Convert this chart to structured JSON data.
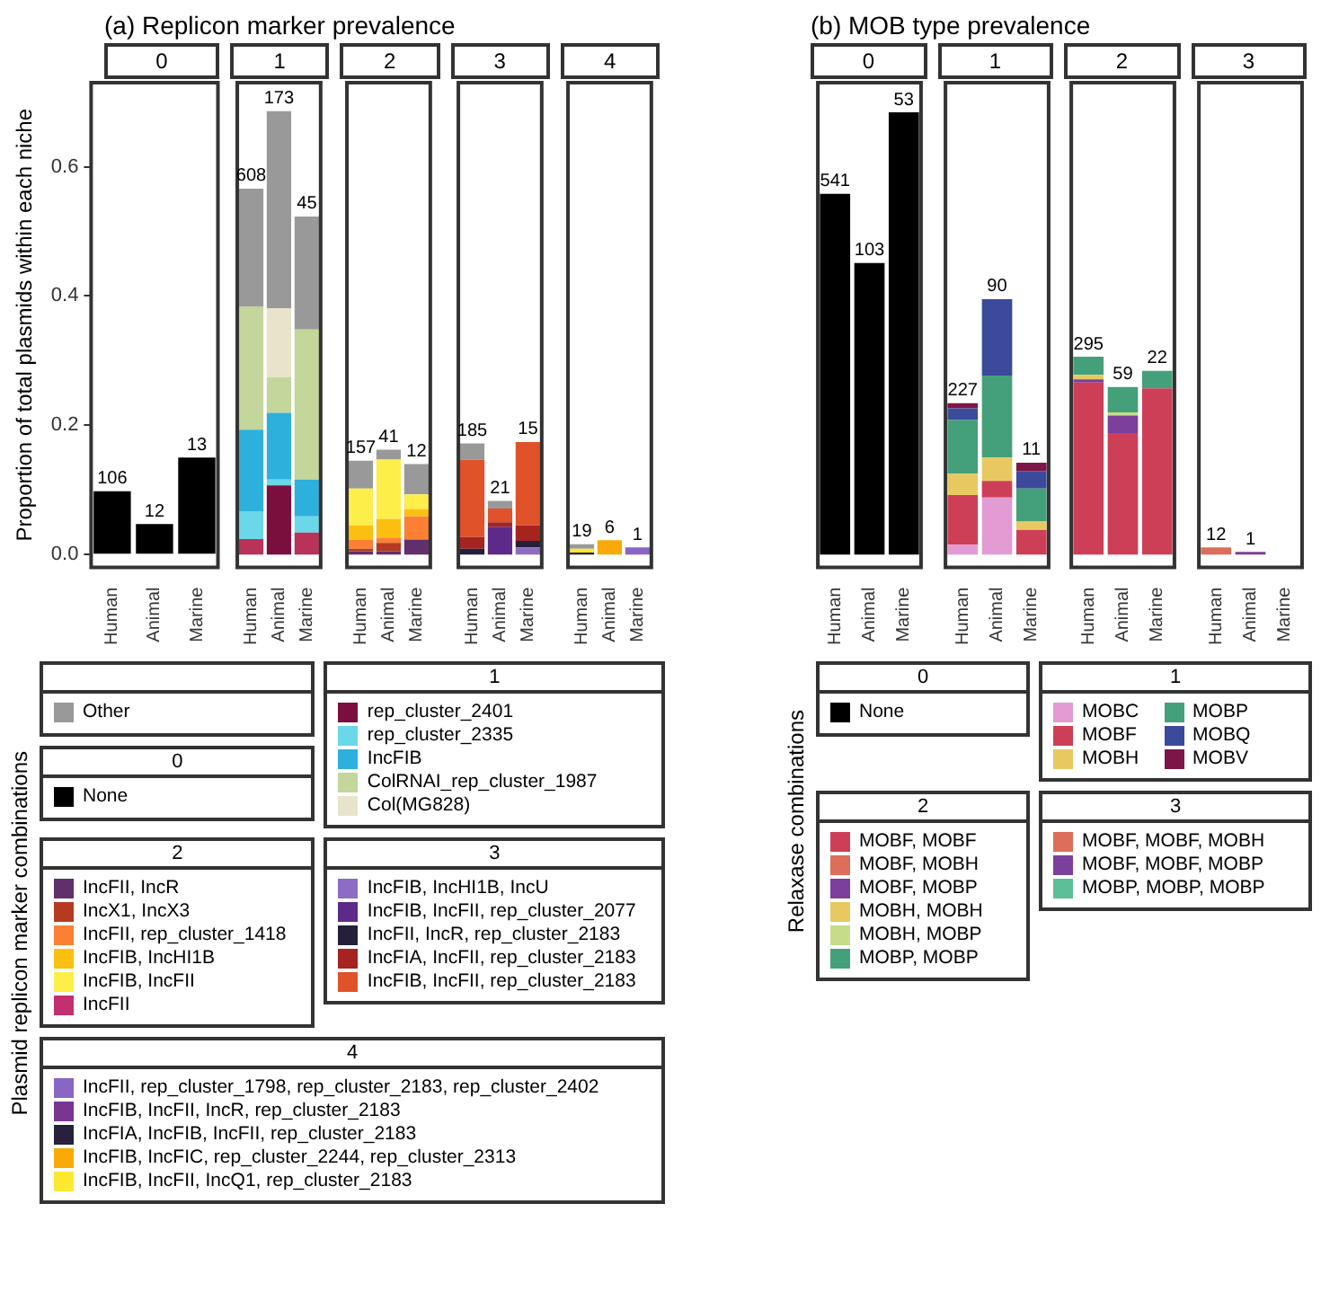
{
  "chart_data": [
    {
      "type": "bar",
      "title": "(a) Replicon marker prevalence",
      "subtitle": "0",
      "annotations": [
        "106",
        "12",
        "13"
      ],
      "ylabel": "Proportion of total plasmids within each niche",
      "legend_title": "Plasmid replicon marker combinations",
      "legend": "bottom",
      "stacked": true,
      "categories": [
        "Human",
        "Animal",
        "Marine"
      ],
      "ylim": [
        -0.02,
        0.73
      ],
      "yticks": [
        {
          "value": 0,
          "label": "0.0"
        },
        {
          "value": 0.2,
          "label": "0.2"
        },
        {
          "value": 0.4,
          "label": "0.4"
        },
        {
          "value": 0.6,
          "label": "0.6"
        }
      ],
      "series": [
        {
          "name": "None",
          "color": "#000000",
          "values": [
            0.098,
            0.047,
            0.15
          ]
        }
      ]
    },
    {
      "type": "bar",
      "subtitle": "1",
      "annotations": [
        "608",
        "173",
        "45"
      ],
      "legend": "bottom",
      "stacked": true,
      "tick_labels": "x",
      "categories": [
        "Human",
        "Animal",
        "Marine"
      ],
      "ylim": [
        -0.02,
        0.73
      ],
      "series": [
        {
          "color": "#b8325a",
          "values": [
            0.024,
            null,
            0.034
          ]
        },
        {
          "name": "rep_cluster_2401",
          "color": "#7a0f3e",
          "values": [
            null,
            0.107,
            null
          ]
        },
        {
          "name": "rep_cluster_2335",
          "color": "#6ad8e8",
          "values": [
            0.043,
            0.009,
            0.025
          ]
        },
        {
          "name": "IncFIB",
          "color": "#2eb0dc",
          "values": [
            0.126,
            0.103,
            0.057
          ]
        },
        {
          "name": "ColRNAI_rep_cluster_1987",
          "color": "#c3d69b",
          "values": [
            0.19,
            0.055,
            0.232
          ]
        },
        {
          "name": "Col(MG828)",
          "color": "#e8e4cc",
          "values": [
            null,
            0.107,
            null
          ]
        },
        {
          "name": "Other",
          "color": "#999999",
          "values": [
            0.183,
            0.305,
            0.175
          ]
        }
      ]
    },
    {
      "type": "bar",
      "subtitle": "2",
      "annotations": [
        "157",
        "41",
        "12"
      ],
      "legend": "bottom",
      "stacked": true,
      "tick_labels": "x",
      "categories": [
        "Human",
        "Animal",
        "Marine"
      ],
      "ylim": [
        -0.02,
        0.73
      ],
      "series": [
        {
          "name": "IncFII, IncR",
          "color": "#60306d",
          "values": [
            0.005,
            0.005,
            0.023
          ]
        },
        {
          "name": "IncX1, IncX3",
          "color": "#b53a22",
          "values": [
            0.004,
            0.013,
            null
          ]
        },
        {
          "name": "IncFII, rep_cluster_1418",
          "color": "#fb8035",
          "values": [
            0.014,
            0.008,
            0.036
          ]
        },
        {
          "name": "IncFIB, IncHI1B",
          "color": "#fdbf0f",
          "values": [
            0.022,
            0.029,
            0.011
          ]
        },
        {
          "name": "IncFIB, IncFII",
          "color": "#fdee4a",
          "values": [
            0.057,
            0.092,
            0.023
          ]
        },
        {
          "name": "IncFII",
          "color": "#c2306e",
          "values": [
            null,
            null,
            null
          ]
        },
        {
          "name": "Other",
          "color": "#999999",
          "values": [
            0.043,
            0.015,
            0.047
          ]
        }
      ]
    },
    {
      "type": "bar",
      "subtitle": "3",
      "annotations": [
        "185",
        "21",
        "15"
      ],
      "legend": "bottom",
      "stacked": true,
      "tick_labels": "x",
      "categories": [
        "Human",
        "Animal",
        "Marine"
      ],
      "ylim": [
        -0.02,
        0.73
      ],
      "series": [
        {
          "name": "IncFIB, IncHI1B, IncU",
          "color": "#8c6dc3",
          "values": [
            null,
            null,
            0.011
          ]
        },
        {
          "name": "IncFIB, IncFII, rep_cluster_2077",
          "color": "#5e2a8a",
          "values": [
            null,
            0.043,
            null
          ]
        },
        {
          "name": "IncFII, IncR, rep_cluster_2183",
          "color": "#251f3a",
          "values": [
            0.009,
            null,
            0.01
          ]
        },
        {
          "name": "IncFIA, IncFII, rep_cluster_2183",
          "color": "#a5241f",
          "values": [
            0.018,
            0.007,
            0.024
          ]
        },
        {
          "name": "IncFIB, IncFII, rep_cluster_2183",
          "color": "#e0522a",
          "values": [
            0.12,
            0.021,
            0.129
          ]
        },
        {
          "name": "Other",
          "color": "#999999",
          "values": [
            0.025,
            0.012,
            null
          ]
        }
      ]
    },
    {
      "type": "bar",
      "subtitle": "4",
      "annotations": [
        "19",
        "6",
        "1"
      ],
      "legend": "bottom",
      "stacked": true,
      "tick_labels": "x",
      "categories": [
        "Human",
        "Animal",
        "Marine"
      ],
      "ylim": [
        -0.02,
        0.73
      ],
      "series": [
        {
          "name": "IncFII, rep_cluster_1798, rep_cluster_2183, rep_cluster_2402",
          "color": "#8966c6",
          "values": [
            null,
            null,
            0.011
          ]
        },
        {
          "name": "IncFIB, IncFII, IncR, rep_cluster_2183",
          "color": "#7a3590",
          "values": [
            null,
            null,
            null
          ]
        },
        {
          "name": "IncFIA, IncFIB, IncFII, rep_cluster_2183",
          "color": "#28213b",
          "values": [
            0.003,
            null,
            null
          ]
        },
        {
          "name": "IncFIB, IncFIC, rep_cluster_2244, rep_cluster_2313",
          "color": "#f9aa08",
          "values": [
            null,
            0.022,
            null
          ]
        },
        {
          "name": "IncFIB, IncFII, IncQ1, rep_cluster_2183",
          "color": "#fde830",
          "values": [
            0.006,
            null,
            null
          ]
        },
        {
          "name": "Other",
          "color": "#999999",
          "values": [
            0.007,
            null,
            null
          ]
        }
      ]
    },
    {
      "type": "bar",
      "title": "(b) MOB type prevalence",
      "subtitle": "0",
      "annotations": [
        "541",
        "103",
        "53"
      ],
      "legend_title": "Relaxase combinations",
      "legend": "bottom",
      "stacked": true,
      "tick_labels": "x",
      "categories": [
        "Human",
        "Animal",
        "Marine"
      ],
      "ylim": [
        -0.02,
        0.73
      ],
      "series": [
        {
          "name": "None",
          "color": "#000000",
          "values": [
            0.558,
            0.451,
            0.684
          ]
        }
      ]
    },
    {
      "type": "bar",
      "subtitle": "1",
      "annotations": [
        "227",
        "90",
        "11"
      ],
      "legend": "bottom",
      "stacked": true,
      "tick_labels": "x",
      "categories": [
        "Human",
        "Animal",
        "Marine"
      ],
      "ylim": [
        -0.02,
        0.73
      ],
      "series": [
        {
          "name": "MOBC",
          "color": "#e29bd3",
          "values": [
            0.015,
            0.088,
            null
          ]
        },
        {
          "name": "MOBF",
          "color": "#cd3f57",
          "values": [
            0.077,
            0.026,
            0.038
          ]
        },
        {
          "name": "MOBH",
          "color": "#e8c961",
          "values": [
            0.033,
            0.036,
            0.013
          ]
        },
        {
          "name": "MOBP",
          "color": "#44a07a",
          "values": [
            0.083,
            0.127,
            0.051
          ]
        },
        {
          "name": "MOBQ",
          "color": "#3b4a9b",
          "values": [
            0.018,
            0.118,
            0.027
          ]
        },
        {
          "name": "MOBV",
          "color": "#7d1548",
          "values": [
            0.008,
            null,
            0.013
          ]
        }
      ]
    },
    {
      "type": "bar",
      "subtitle": "2",
      "annotations": [
        "295",
        "59",
        "22"
      ],
      "legend": "bottom",
      "stacked": true,
      "tick_labels": "x",
      "categories": [
        "Human",
        "Animal",
        "Marine"
      ],
      "ylim": [
        -0.02,
        0.73
      ],
      "series": [
        {
          "name": "MOBF, MOBF",
          "color": "#cd3f57",
          "values": [
            0.266,
            0.188,
            0.257
          ]
        },
        {
          "name": "MOBF, MOBH",
          "color": "#dd6e5a",
          "values": [
            null,
            null,
            null
          ]
        },
        {
          "name": "MOBF, MOBP",
          "color": "#7b3f9c",
          "values": [
            0.005,
            0.027,
            null
          ]
        },
        {
          "name": "MOBH, MOBH",
          "color": "#e8c961",
          "values": [
            0.007,
            null,
            null
          ]
        },
        {
          "name": "MOBH, MOBP",
          "color": "#c5dc8a",
          "values": [
            null,
            0.005,
            null
          ]
        },
        {
          "name": "MOBP, MOBP",
          "color": "#44a07a",
          "values": [
            0.028,
            0.039,
            0.027
          ]
        }
      ]
    },
    {
      "type": "bar",
      "subtitle": "3",
      "annotations": [
        "12",
        "1"
      ],
      "legend": "bottom",
      "stacked": true,
      "tick_labels": "x",
      "categories": [
        "Human",
        "Animal",
        "Marine"
      ],
      "ylim": [
        -0.02,
        0.73
      ],
      "series": [
        {
          "name": "MOBF, MOBF, MOBH",
          "color": "#dd6e5a",
          "values": [
            0.011,
            null,
            null
          ]
        },
        {
          "name": "MOBF, MOBF, MOBP",
          "color": "#7b3f9c",
          "values": [
            null,
            0.004,
            null
          ]
        },
        {
          "name": "MOBP, MOBP, MOBP",
          "color": "#5cbf96",
          "values": [
            null,
            null,
            null
          ]
        }
      ]
    }
  ]
}
